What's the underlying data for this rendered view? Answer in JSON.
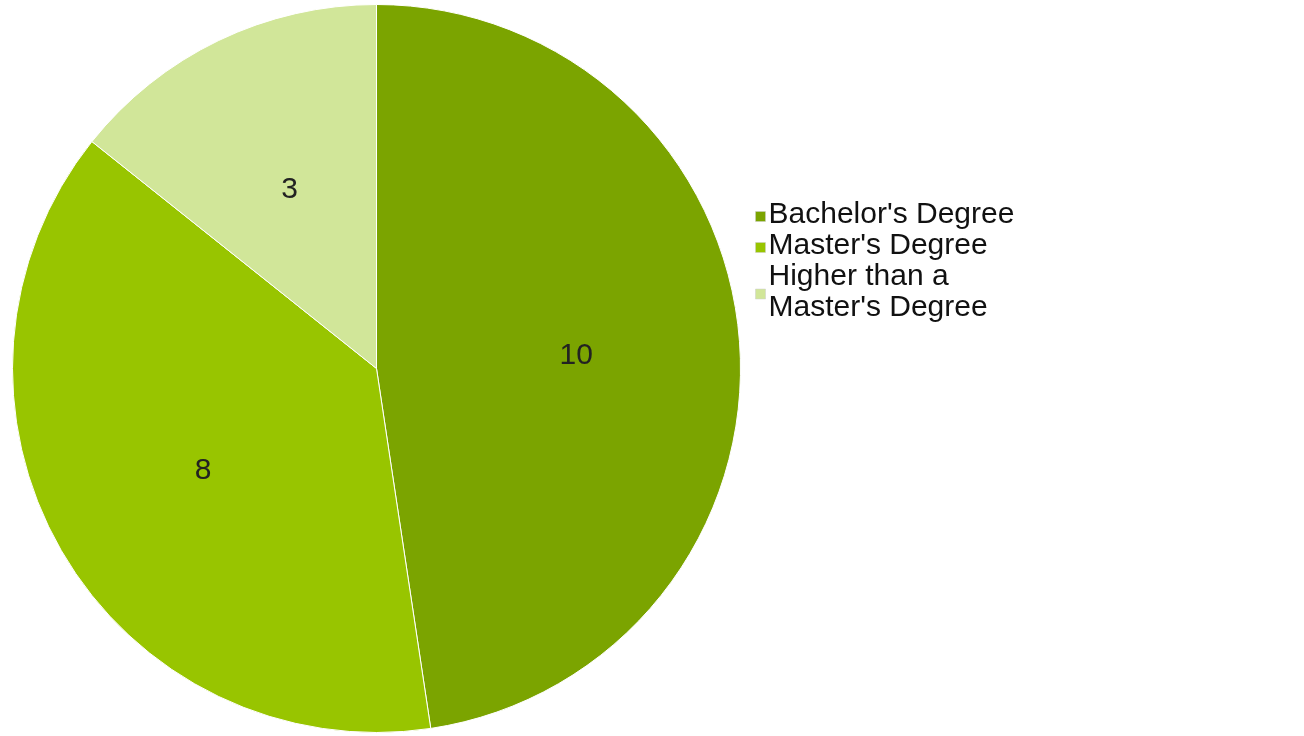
{
  "chart_data": {
    "type": "pie",
    "categories": [
      "Bachelor's Degree",
      "Master's Degree",
      "Higher than a Master's Degree"
    ],
    "values": [
      10,
      8,
      3
    ],
    "colors": [
      "#7ba400",
      "#98c500",
      "#d1e699"
    ],
    "data_labels": true,
    "legend": "right"
  }
}
